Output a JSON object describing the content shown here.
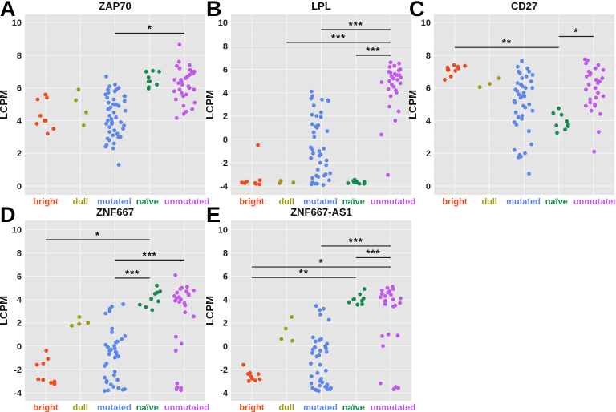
{
  "colors": {
    "bright": "#EE4A1C",
    "dull": "#9E9A12",
    "mutated": "#5A86EE",
    "naïve": "#138A4E",
    "unmutated": "#C158EE",
    "panel_bg": "#E5E5E5",
    "grid": "#F5F5F5"
  },
  "chart_data": [
    {
      "type": "scatter",
      "panel": "A",
      "title": "ZAP70",
      "ylabel": "LCPM",
      "ylim": [
        -0.54,
        10.5
      ],
      "yticks": [
        0,
        2,
        4,
        6,
        8,
        10
      ],
      "grid": true,
      "categories": [
        "bright",
        "dull",
        "mutated",
        "naïve",
        "unmutated"
      ],
      "groups": {
        "bright": [
          5.6,
          5.4,
          5.3,
          4.3,
          4.0,
          4.0,
          3.8,
          3.5,
          3.2
        ],
        "dull": [
          5.9,
          5.25,
          4.5,
          3.7
        ],
        "mutated": [
          6.7,
          6.2,
          6.1,
          6.0,
          5.9,
          5.9,
          5.8,
          5.7,
          5.6,
          5.5,
          5.5,
          5.4,
          5.3,
          5.2,
          5.1,
          5.0,
          5.0,
          4.9,
          4.8,
          4.7,
          4.6,
          4.5,
          4.3,
          4.2,
          4.1,
          4.0,
          3.9,
          3.9,
          3.8,
          3.8,
          3.7,
          3.6,
          3.5,
          3.4,
          3.3,
          3.2,
          3.1,
          3.0,
          3.0,
          2.9,
          2.8,
          2.6,
          2.5,
          2.4,
          2.3,
          1.3
        ],
        "naïve": [
          7.05,
          7.0,
          7.0,
          6.65,
          6.4,
          6.4,
          6.2,
          6.05,
          5.95
        ],
        "unmutated": [
          8.65,
          7.6,
          7.4,
          7.35,
          7.2,
          7.1,
          7.0,
          7.0,
          6.9,
          6.9,
          6.8,
          6.7,
          6.6,
          6.5,
          6.5,
          6.4,
          6.3,
          6.2,
          6.1,
          6.0,
          5.9,
          5.9,
          5.8,
          5.7,
          5.6,
          5.5,
          5.3,
          5.1,
          4.9,
          4.7,
          4.55,
          4.4,
          4.15
        ]
      },
      "comparisons": [
        {
          "from": "mutated",
          "to": "unmutated",
          "y": 9.35,
          "label": "*"
        }
      ]
    },
    {
      "type": "scatter",
      "panel": "B",
      "title": "LPL",
      "ylabel": "LCPM",
      "ylim": [
        -4.75,
        10.7
      ],
      "yticks": [
        -4,
        -2,
        0,
        2,
        4,
        6,
        8,
        10
      ],
      "grid": true,
      "categories": [
        "bright",
        "dull",
        "mutated",
        "naïve",
        "unmutated"
      ],
      "groups": {
        "bright": [
          -0.5,
          -3.5,
          -3.6,
          -3.7,
          -3.75,
          -3.8,
          -3.8,
          -3.75,
          -3.85
        ],
        "dull": [
          -3.55,
          -3.7,
          -3.75
        ],
        "mutated": [
          4.1,
          3.7,
          3.5,
          3.4,
          3.35,
          3.3,
          2.9,
          2.3,
          2.1,
          2.0,
          1.9,
          1.3,
          1.2,
          1.1,
          1.0,
          0.7,
          0.6,
          0.2,
          -0.7,
          -0.8,
          -0.9,
          -1.0,
          -1.2,
          -1.3,
          -1.4,
          -1.6,
          -1.8,
          -2.0,
          -2.2,
          -2.6,
          -2.9,
          -3.0,
          -3.1,
          -3.1,
          -3.2,
          -3.3,
          -3.5,
          -3.7,
          -3.75,
          -3.8,
          -3.8,
          -3.85,
          -3.9
        ],
        "naïve": [
          -3.45,
          -3.55,
          -3.6,
          -3.65,
          -3.7,
          -3.7,
          -3.75,
          -3.8,
          -3.8
        ],
        "unmutated": [
          6.6,
          6.5,
          6.3,
          6.2,
          6.0,
          5.9,
          5.8,
          5.7,
          5.6,
          5.5,
          5.5,
          5.4,
          5.3,
          5.2,
          5.1,
          5.0,
          4.9,
          4.8,
          4.7,
          4.5,
          4.3,
          4.2,
          4.0,
          3.7,
          2.8,
          2.4,
          1.6,
          0.4,
          -3.05
        ]
      },
      "comparisons": [
        {
          "from": "mutated",
          "to": "unmutated",
          "y": 9.4,
          "label": "***"
        },
        {
          "from": "dull",
          "to": "unmutated",
          "y": 8.3,
          "label": "***"
        },
        {
          "from": "naïve",
          "to": "unmutated",
          "y": 7.2,
          "label": "***"
        }
      ]
    },
    {
      "type": "scatter",
      "panel": "C",
      "title": "CD27",
      "ylabel": "LCPM",
      "ylim": [
        -0.54,
        10.5
      ],
      "yticks": [
        0,
        2,
        4,
        6,
        8,
        10
      ],
      "grid": true,
      "categories": [
        "bright",
        "dull",
        "mutated",
        "naïve",
        "unmutated"
      ],
      "groups": {
        "bright": [
          7.4,
          7.35,
          7.3,
          7.25,
          7.2,
          7.1,
          7.1,
          7.05,
          6.7,
          6.5
        ],
        "dull": [
          6.6,
          6.25,
          6.05
        ],
        "mutated": [
          7.65,
          7.3,
          7.2,
          7.0,
          7.0,
          6.9,
          6.8,
          6.7,
          6.6,
          6.4,
          6.3,
          6.2,
          6.1,
          6.0,
          6.0,
          5.9,
          5.8,
          5.7,
          5.6,
          5.5,
          5.5,
          5.4,
          5.2,
          5.1,
          5.0,
          4.9,
          4.8,
          4.6,
          4.5,
          4.3,
          4.2,
          4.1,
          3.9,
          3.75,
          3.35,
          2.55,
          2.2,
          2.0,
          1.9,
          1.8,
          1.75,
          0.75
        ],
        "naïve": [
          4.75,
          4.45,
          4.35,
          3.95,
          3.75,
          3.7,
          3.65,
          3.45,
          3.25
        ],
        "unmutated": [
          7.75,
          7.7,
          7.5,
          7.4,
          7.2,
          7.1,
          7.0,
          6.9,
          6.8,
          6.7,
          6.6,
          6.5,
          6.4,
          6.3,
          6.2,
          6.0,
          5.9,
          5.7,
          5.5,
          5.4,
          5.3,
          5.1,
          5.0,
          4.9,
          4.9,
          4.6,
          4.4,
          3.3,
          2.1
        ]
      },
      "comparisons": [
        {
          "from": "bright",
          "to": "naïve",
          "y": 8.48,
          "label": "**"
        },
        {
          "from": "naïve",
          "to": "unmutated",
          "y": 9.15,
          "label": "*"
        }
      ]
    },
    {
      "type": "scatter",
      "panel": "D",
      "title": "ZNF667",
      "ylabel": "LCPM",
      "ylim": [
        -4.7,
        10.8
      ],
      "yticks": [
        -4,
        -2,
        0,
        2,
        4,
        6,
        8,
        10
      ],
      "grid": true,
      "categories": [
        "bright",
        "dull",
        "mutated",
        "naïve",
        "unmutated"
      ],
      "groups": {
        "bright": [
          -0.4,
          -1.1,
          -1.5,
          -1.6,
          -2.85,
          -2.9,
          -3.05,
          -3.15,
          -3.25
        ],
        "dull": [
          2.5,
          2.0,
          1.9,
          1.75
        ],
        "mutated": [
          3.6,
          3.4,
          3.2,
          3.0,
          2.8,
          1.5,
          1.2,
          0.85,
          0.6,
          0.4,
          0.3,
          0.1,
          0,
          -0.1,
          -0.2,
          -0.3,
          -0.4,
          -0.5,
          -0.6,
          -0.7,
          -0.8,
          -0.9,
          -1.0,
          -1.5,
          -1.7,
          -2.2,
          -2.5,
          -2.7,
          -2.9,
          -3.0,
          -3.1,
          -3.3,
          -3.5,
          -3.6,
          -3.7,
          -3.75,
          -3.8,
          -3.85
        ],
        "naïve": [
          5.2,
          4.7,
          4.6,
          4.5,
          4.05,
          3.85,
          3.55,
          3.35,
          3.1
        ],
        "unmutated": [
          6.1,
          5.1,
          5.0,
          4.9,
          4.8,
          4.7,
          4.6,
          4.5,
          4.4,
          4.3,
          4.2,
          4.1,
          4.0,
          3.9,
          3.8,
          3.7,
          3.5,
          2.9,
          2.55,
          0.8,
          0.2,
          -0.4,
          -3.2,
          -3.55,
          -3.6,
          -3.7,
          -3.8
        ]
      },
      "comparisons": [
        {
          "from": "bright",
          "to": "naïve",
          "y": 9.15,
          "label": "*"
        },
        {
          "from": "mutated",
          "to": "unmutated",
          "y": 7.4,
          "label": "***"
        },
        {
          "from": "mutated",
          "to": "naïve",
          "y": 5.85,
          "label": "***"
        }
      ]
    },
    {
      "type": "scatter",
      "panel": "E",
      "title": "ZNF667-AS1",
      "ylabel": "LCPM",
      "ylim": [
        -4.7,
        10.8
      ],
      "yticks": [
        -4,
        -2,
        0,
        2,
        4,
        6,
        8,
        10
      ],
      "grid": true,
      "categories": [
        "bright",
        "dull",
        "mutated",
        "naïve",
        "unmutated"
      ],
      "groups": {
        "bright": [
          -1.6,
          -2.3,
          -2.4,
          -2.4,
          -2.6,
          -2.8,
          -2.85,
          -2.95,
          -3.0
        ],
        "dull": [
          2.5,
          1.5,
          0.6,
          0.45
        ],
        "mutated": [
          3.45,
          3.2,
          3.1,
          2.7,
          2.25,
          0.75,
          0.6,
          0.5,
          0.4,
          0.2,
          0,
          -0.1,
          -0.2,
          -0.3,
          -0.4,
          -0.5,
          -0.6,
          -0.8,
          -0.9,
          -1.5,
          -1.6,
          -2.1,
          -2.3,
          -2.6,
          -2.8,
          -3.0,
          -3.1,
          -3.2,
          -3.3,
          -3.4,
          -3.5,
          -3.5,
          -3.6,
          -3.6,
          -3.7,
          -3.7,
          -3.75,
          -3.8,
          -3.85
        ],
        "naïve": [
          4.9,
          4.45,
          4.1,
          4.05,
          4.0,
          3.9,
          3.75,
          3.6,
          3.55
        ],
        "unmutated": [
          5.1,
          5.0,
          4.9,
          4.8,
          4.7,
          4.6,
          4.5,
          4.4,
          4.3,
          4.2,
          4.1,
          4.0,
          3.9,
          3.8,
          3.7,
          3.6,
          3.5,
          3.4,
          1.0,
          0.9,
          0.85,
          0.0,
          -3.2,
          -3.5,
          -3.6,
          -3.7
        ]
      },
      "comparisons": [
        {
          "from": "mutated",
          "to": "unmutated",
          "y": 8.6,
          "label": "***"
        },
        {
          "from": "naïve",
          "to": "unmutated",
          "y": 7.6,
          "label": "***"
        },
        {
          "from": "bright",
          "to": "unmutated",
          "y": 6.8,
          "label": "*"
        },
        {
          "from": "bright",
          "to": "naïve",
          "y": 5.9,
          "label": "**"
        }
      ]
    }
  ]
}
